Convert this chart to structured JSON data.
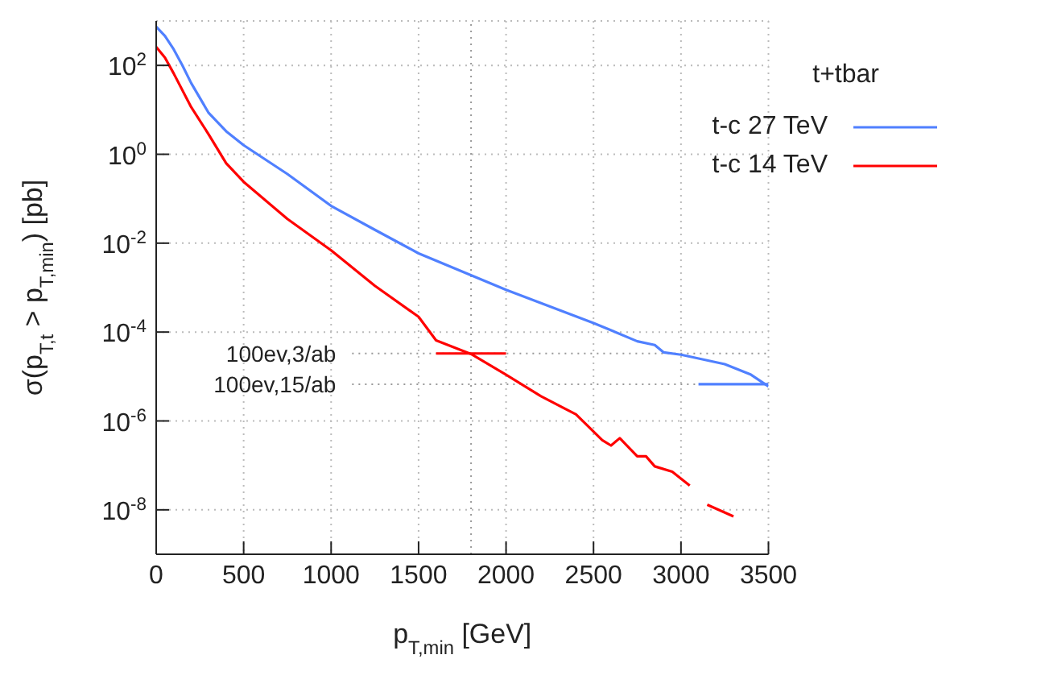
{
  "chart_data": {
    "type": "line",
    "xlabel": "p$_{T,min}$ [GeV]",
    "ylabel": "σ(p$_{T,t}$ > p$_{T,min}$) [pb]",
    "legend_title": "t+tbar",
    "legend": "top right",
    "log": "y",
    "grid": true,
    "marker": "none",
    "line_style": "solid",
    "xlim": [
      0,
      3500
    ],
    "xticks": [
      0,
      500,
      1000,
      1500,
      2000,
      2500,
      3000,
      3500
    ],
    "ylim": [
      1e-09,
      1000
    ],
    "yticks": [
      {
        "value": 100,
        "label": "10$^{2}$"
      },
      {
        "value": 1,
        "label": "10$^{0}$"
      },
      {
        "value": 0.01,
        "label": "10$^{-2}$"
      },
      {
        "value": 0.0001,
        "label": "10$^{-4}$"
      },
      {
        "value": 1e-06,
        "label": "10$^{-6}$"
      },
      {
        "value": 1e-08,
        "label": "10$^{-8}$"
      }
    ],
    "series": [
      {
        "name": "t-c 27 TeV",
        "color": "#5080ff",
        "x": [
          0,
          50,
          100,
          150,
          200,
          300,
          400,
          500,
          750,
          1000,
          1250,
          1500,
          2000,
          2500,
          2750,
          2850,
          2900,
          3000,
          3250,
          3400,
          3500
        ],
        "values": [
          740,
          460,
          230,
          100,
          40,
          8.5,
          3.3,
          1.6,
          0.36,
          0.069,
          0.02,
          0.0059,
          0.00089,
          0.00016,
          6.2e-05,
          5.1e-05,
          3.5e-05,
          3.1e-05,
          1.9e-05,
          1.1e-05,
          6e-06
        ]
      },
      {
        "name": "t-c 14 TeV",
        "color": "#ff0000",
        "x": [
          0,
          50,
          100,
          200,
          300,
          400,
          500,
          750,
          1000,
          1250,
          1500,
          1600,
          1800,
          2000,
          2200,
          2400,
          2550,
          2600,
          2650,
          2750,
          2800,
          2850,
          2950,
          3050,
          3100,
          3150,
          3300
        ],
        "values": [
          260,
          150,
          66,
          11.5,
          2.8,
          0.63,
          0.24,
          0.035,
          0.0069,
          0.0011,
          0.00022,
          6.5e-05,
          3.2e-05,
          1.1e-05,
          3.6e-06,
          1.4e-06,
          3.7e-07,
          2.8e-07,
          4.1e-07,
          1.6e-07,
          1.6e-07,
          9.5e-08,
          7.2e-08,
          3.5e-08,
          null,
          1.3e-08,
          7.1e-09
        ]
      },
      {
        "color": "#ff0000",
        "x": [
          1600,
          2000
        ],
        "values": [
          3.3e-05,
          3.3e-05
        ]
      },
      {
        "color": "#5080ff",
        "x": [
          3100,
          3500
        ],
        "values": [
          6.7e-06,
          6.7e-06
        ]
      }
    ],
    "ref_lines": [
      {
        "axis": "y",
        "value": 3.3e-05,
        "label": "100ev,3/ab",
        "color": "#999999",
        "line_style": "dotted"
      },
      {
        "axis": "y",
        "value": 6.7e-06,
        "label": "100ev,15/ab",
        "color": "#999999",
        "line_style": "dotted"
      },
      {
        "axis": "x",
        "value": 1800,
        "color": "#999999",
        "line_style": "dotted"
      }
    ]
  }
}
